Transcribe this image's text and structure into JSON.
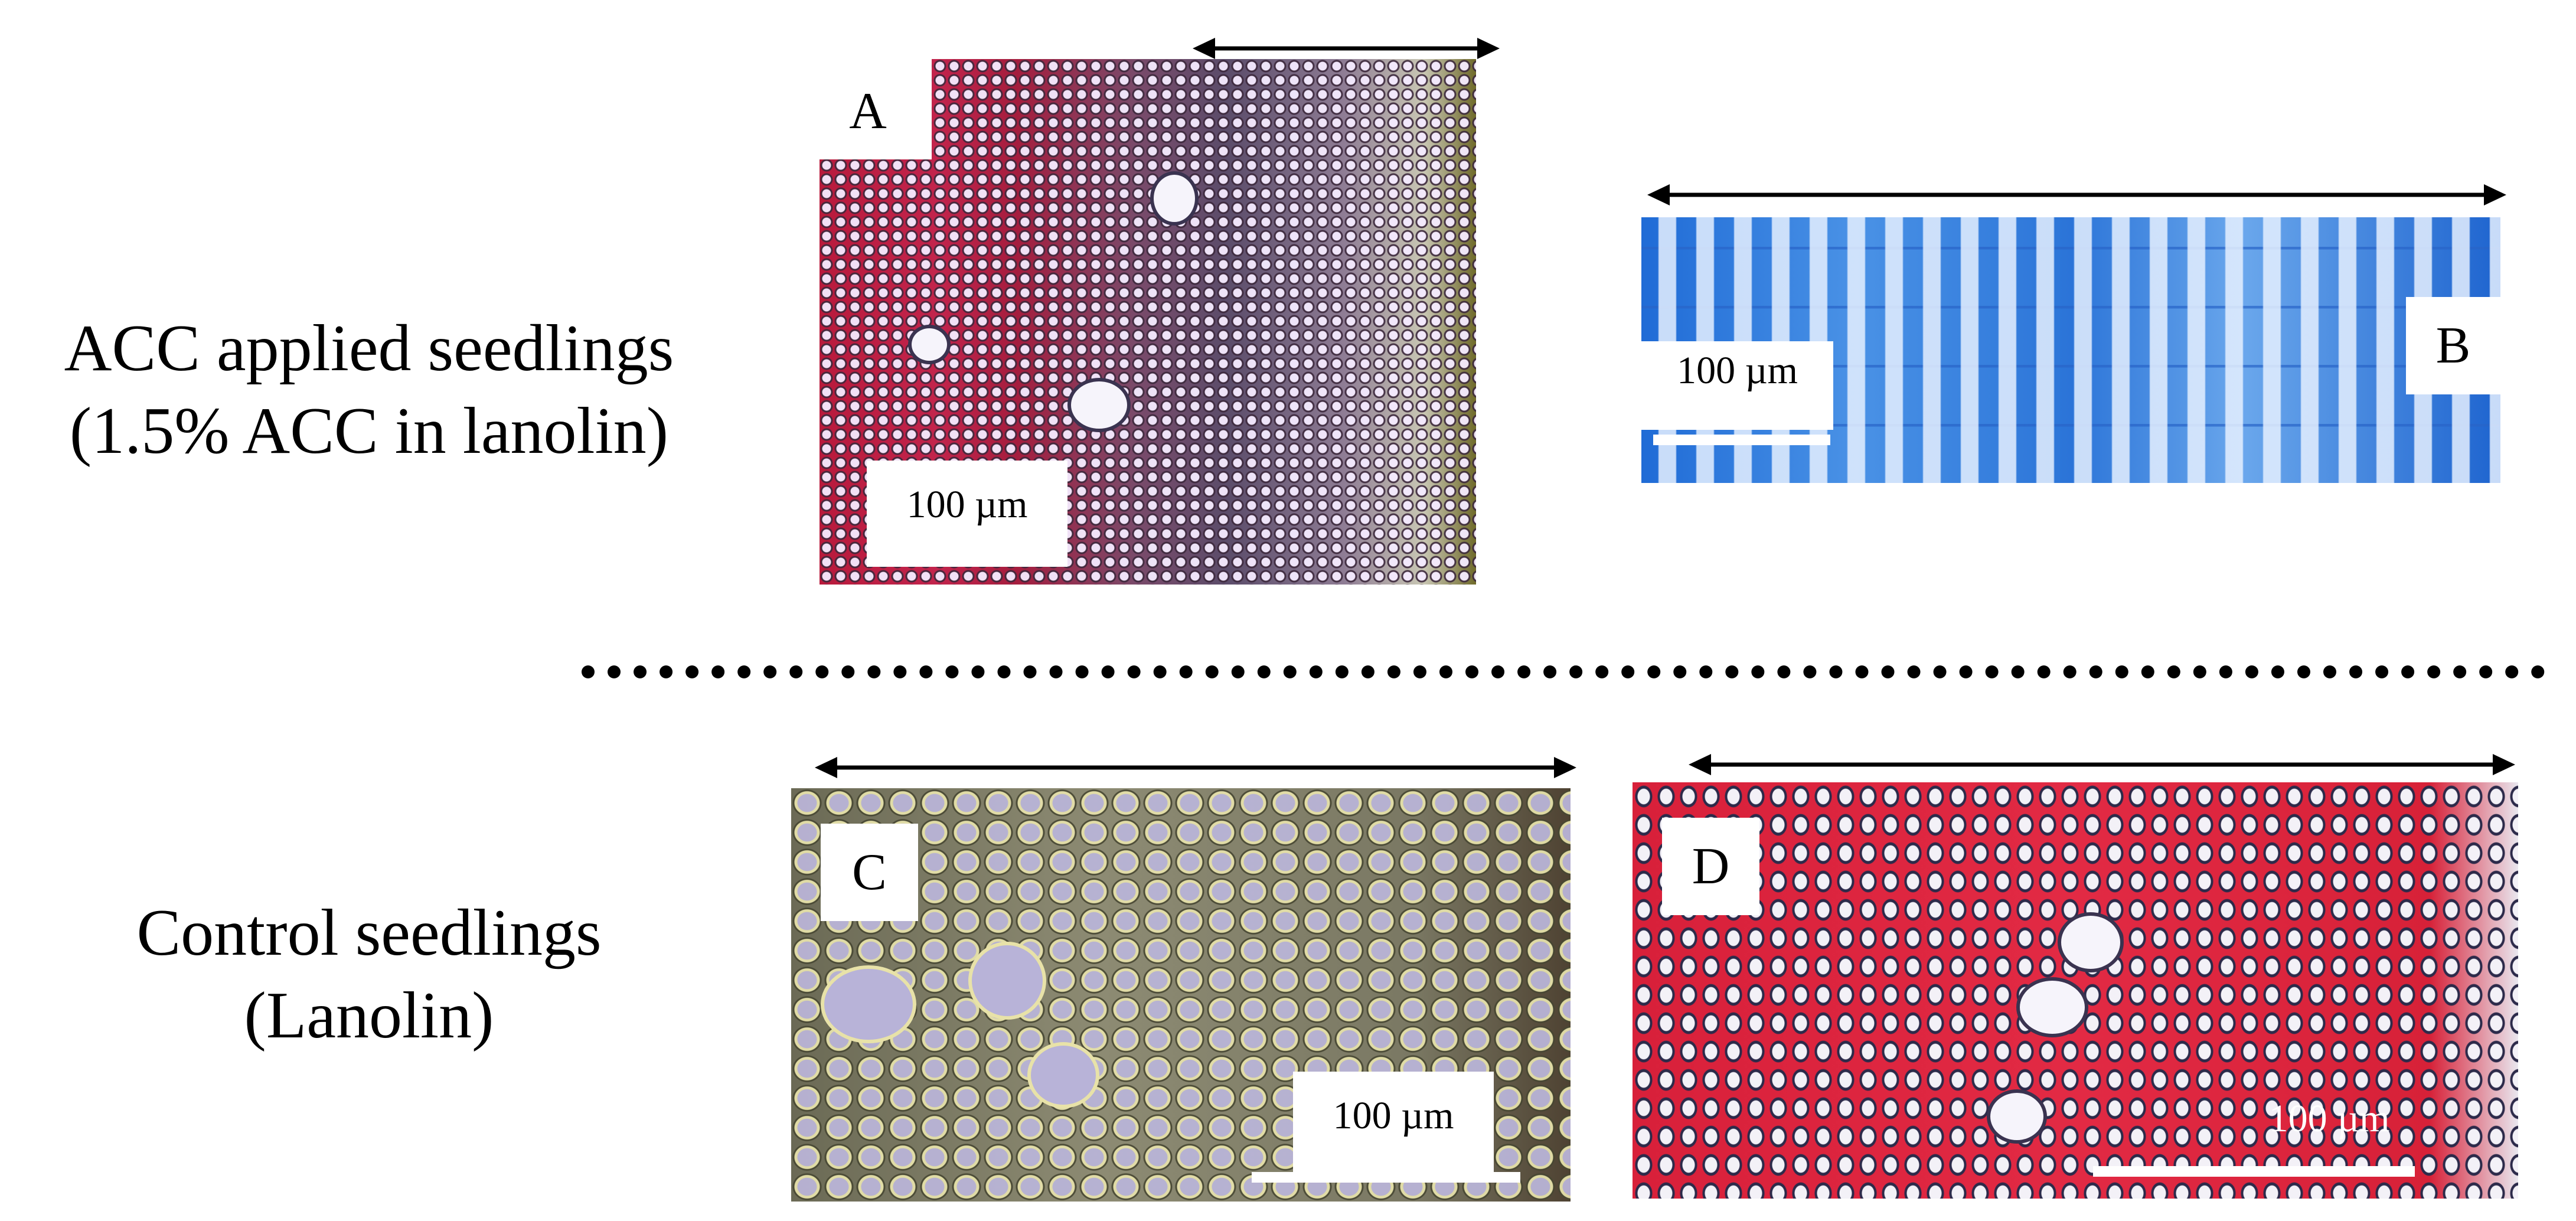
{
  "rows": {
    "acc": {
      "line1": "ACC applied seedlings",
      "line2": "(1.5% ACC in lanolin)"
    },
    "control": {
      "line1": "Control seedlings",
      "line2": "(Lanolin)"
    }
  },
  "panels": {
    "a": {
      "letter": "A",
      "scale_label": "100 µm",
      "stain_color": "#b81a3c"
    },
    "b": {
      "letter": "B",
      "scale_label": "100 µm",
      "stain_color": "#1f6bd6"
    },
    "c": {
      "letter": "C",
      "scale_label": "100 µm",
      "stain_color": "#8d8b73"
    },
    "d": {
      "letter": "D",
      "scale_label": "100 µm",
      "stain_color": "#d8203a"
    }
  }
}
